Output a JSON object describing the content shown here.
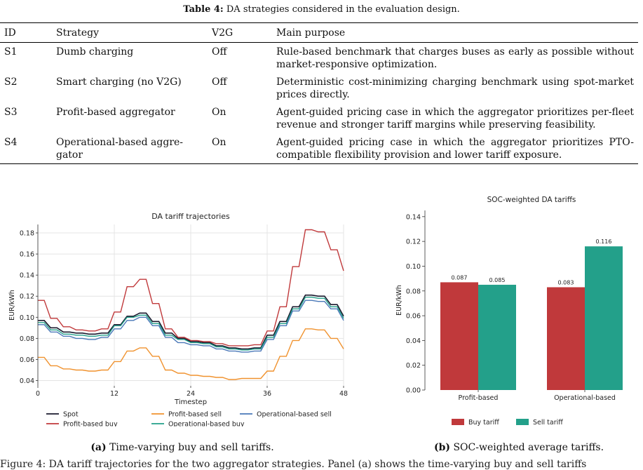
{
  "table": {
    "caption_label": "Table 4:",
    "caption_text": "DA strategies considered in the evaluation design.",
    "headers": [
      "ID",
      "Strategy",
      "V2G",
      "Main purpose"
    ],
    "rows": [
      [
        "S1",
        "Dumb charging",
        "Off",
        "Rule-based benchmark that charges buses as early as possible without market-responsive optimization."
      ],
      [
        "S2",
        "Smart charging (no V2G)",
        "Off",
        "Deterministic cost-minimizing charging benchmark using spot-market prices directly."
      ],
      [
        "S3",
        "Profit-based aggregator",
        "On",
        "Agent-guided pricing case in which the aggregator prioritizes per-fleet revenue and stronger tariff margins while preserving feasibility."
      ],
      [
        "S4",
        "Operational-based aggre-gator",
        "On",
        "Agent-guided pricing case in which the aggregator prioritizes PTO-compatible flexibility provision and lower tariff exposure."
      ]
    ]
  },
  "figure_a": {
    "label": "(a)",
    "caption": "Time-varying buy and sell tariffs."
  },
  "figure_b": {
    "label": "(b)",
    "caption": "SOC-weighted average tariffs."
  },
  "figure_caption_truncated": "Figure 4: DA tariff trajectories for the two aggregator strategies. Panel (a) shows the time-varying buy and sell tariffs",
  "chart_data": [
    {
      "type": "line",
      "title": "DA tariff trajectories",
      "xlabel": "Timestep",
      "ylabel": "EUR/kWh",
      "xlim": [
        0,
        48
      ],
      "ylim": [
        0.035,
        0.188
      ],
      "xticks": [
        0,
        12,
        24,
        36,
        48
      ],
      "yticks": [
        0.04,
        0.06,
        0.08,
        0.1,
        0.12,
        0.14,
        0.16,
        0.18
      ],
      "ytick_labels": [
        "0.04",
        "0.06",
        "0.08",
        "0.10",
        "0.12",
        "0.14",
        "0.16",
        "0.18"
      ],
      "grid": true,
      "legend_position": "below",
      "x": [
        0,
        1,
        2,
        3,
        4,
        5,
        6,
        7,
        8,
        9,
        10,
        11,
        12,
        13,
        14,
        15,
        16,
        17,
        18,
        19,
        20,
        21,
        22,
        23,
        24,
        25,
        26,
        27,
        28,
        29,
        30,
        31,
        32,
        33,
        34,
        35,
        36,
        37,
        38,
        39,
        40,
        41,
        42,
        43,
        44,
        45,
        46,
        47,
        48
      ],
      "series": [
        {
          "name": "Spot",
          "color": "#1a1a2e",
          "width": 1.6,
          "values": [
            0.097,
            0.097,
            0.09,
            0.09,
            0.086,
            0.086,
            0.085,
            0.085,
            0.084,
            0.084,
            0.085,
            0.085,
            0.093,
            0.093,
            0.101,
            0.101,
            0.104,
            0.104,
            0.096,
            0.096,
            0.085,
            0.085,
            0.08,
            0.08,
            0.077,
            0.077,
            0.076,
            0.076,
            0.073,
            0.073,
            0.071,
            0.071,
            0.07,
            0.07,
            0.071,
            0.071,
            0.083,
            0.083,
            0.096,
            0.096,
            0.11,
            0.11,
            0.121,
            0.121,
            0.12,
            0.12,
            0.112,
            0.112,
            0.101
          ]
        },
        {
          "name": "Profit-based buy",
          "color": "#c0393b",
          "width": 1.4,
          "values": [
            0.116,
            0.116,
            0.099,
            0.099,
            0.091,
            0.091,
            0.088,
            0.088,
            0.087,
            0.087,
            0.089,
            0.089,
            0.105,
            0.105,
            0.129,
            0.129,
            0.136,
            0.136,
            0.113,
            0.113,
            0.089,
            0.089,
            0.081,
            0.081,
            0.078,
            0.078,
            0.077,
            0.077,
            0.075,
            0.075,
            0.073,
            0.073,
            0.073,
            0.073,
            0.074,
            0.074,
            0.087,
            0.087,
            0.11,
            0.11,
            0.148,
            0.148,
            0.183,
            0.183,
            0.181,
            0.181,
            0.164,
            0.164,
            0.144
          ]
        },
        {
          "name": "Profit-based sell",
          "color": "#f0922e",
          "width": 1.4,
          "values": [
            0.062,
            0.062,
            0.054,
            0.054,
            0.051,
            0.051,
            0.05,
            0.05,
            0.049,
            0.049,
            0.05,
            0.05,
            0.058,
            0.058,
            0.068,
            0.068,
            0.071,
            0.071,
            0.063,
            0.063,
            0.05,
            0.05,
            0.047,
            0.047,
            0.045,
            0.045,
            0.044,
            0.044,
            0.043,
            0.043,
            0.041,
            0.041,
            0.042,
            0.042,
            0.042,
            0.042,
            0.049,
            0.049,
            0.063,
            0.063,
            0.078,
            0.078,
            0.089,
            0.089,
            0.088,
            0.088,
            0.08,
            0.08,
            0.07
          ]
        },
        {
          "name": "Operational-based buy",
          "color": "#23a08a",
          "width": 1.4,
          "values": [
            0.095,
            0.095,
            0.088,
            0.088,
            0.084,
            0.084,
            0.083,
            0.083,
            0.082,
            0.082,
            0.083,
            0.083,
            0.092,
            0.092,
            0.1,
            0.1,
            0.102,
            0.102,
            0.094,
            0.094,
            0.083,
            0.083,
            0.079,
            0.079,
            0.076,
            0.076,
            0.075,
            0.075,
            0.072,
            0.072,
            0.07,
            0.07,
            0.069,
            0.069,
            0.07,
            0.07,
            0.081,
            0.081,
            0.094,
            0.094,
            0.108,
            0.108,
            0.119,
            0.119,
            0.118,
            0.118,
            0.11,
            0.11,
            0.099
          ]
        },
        {
          "name": "Operational-based sell",
          "color": "#4a78b8",
          "width": 1.4,
          "values": [
            0.093,
            0.093,
            0.086,
            0.086,
            0.082,
            0.082,
            0.08,
            0.08,
            0.079,
            0.079,
            0.081,
            0.081,
            0.089,
            0.089,
            0.097,
            0.097,
            0.1,
            0.1,
            0.092,
            0.092,
            0.081,
            0.081,
            0.076,
            0.076,
            0.074,
            0.074,
            0.073,
            0.073,
            0.07,
            0.07,
            0.068,
            0.068,
            0.067,
            0.067,
            0.068,
            0.068,
            0.079,
            0.079,
            0.092,
            0.092,
            0.106,
            0.106,
            0.116,
            0.116,
            0.115,
            0.115,
            0.108,
            0.108,
            0.097
          ]
        }
      ]
    },
    {
      "type": "bar",
      "title": "SOC-weighted DA tariffs",
      "ylabel": "EUR/kWh",
      "ylim": [
        0,
        0.145
      ],
      "yticks": [
        0.0,
        0.02,
        0.04,
        0.06,
        0.08,
        0.1,
        0.12,
        0.14
      ],
      "ytick_labels": [
        "0.00",
        "0.02",
        "0.04",
        "0.06",
        "0.08",
        "0.10",
        "0.12",
        "0.14"
      ],
      "categories": [
        "Profit-based",
        "Operational-based"
      ],
      "legend_position": "below",
      "series": [
        {
          "name": "Buy tariff",
          "color": "#c0393b",
          "values": [
            0.087,
            0.083
          ],
          "labels": [
            "0.087",
            "0.083"
          ]
        },
        {
          "name": "Sell tariff",
          "color": "#23a08a",
          "values": [
            0.085,
            0.116
          ],
          "labels": [
            "0.085",
            "0.116"
          ]
        }
      ]
    }
  ]
}
